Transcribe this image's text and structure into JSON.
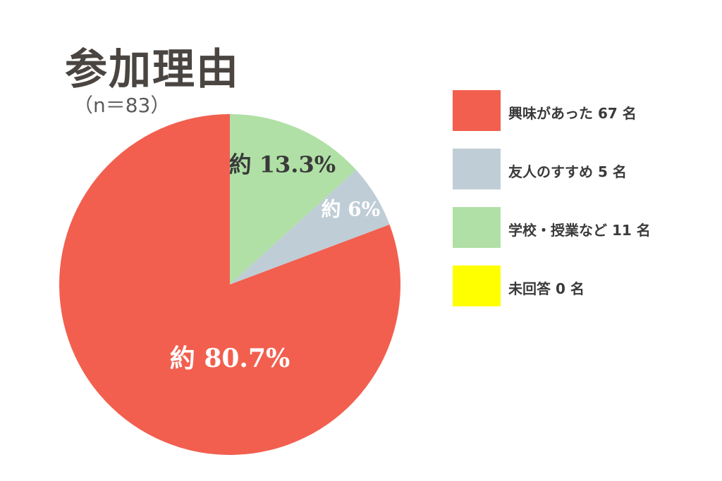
{
  "chart_data": {
    "type": "pie",
    "title": "参加理由",
    "subtitle": "（n＝83）",
    "categories": [
      "興味があった",
      "友人のすすめ",
      "学校・授業など",
      "未回答"
    ],
    "values": [
      67,
      5,
      11,
      0
    ],
    "slice_labels": [
      "約 80.7%",
      "約 6%",
      "約 13.3%",
      ""
    ],
    "legend": [
      "興味があった 67 名",
      "友人のすすめ 5 名",
      "学校・授業など 11 名",
      "未回答 0 名"
    ],
    "colors": [
      "#f25f4f",
      "#bfcdd6",
      "#b0e0a5",
      "#ffff00"
    ],
    "label_colors": [
      "#ffffff",
      "#ffffff",
      "#3a3a3a",
      "#3a3a3a"
    ],
    "legend_placement": "right"
  }
}
